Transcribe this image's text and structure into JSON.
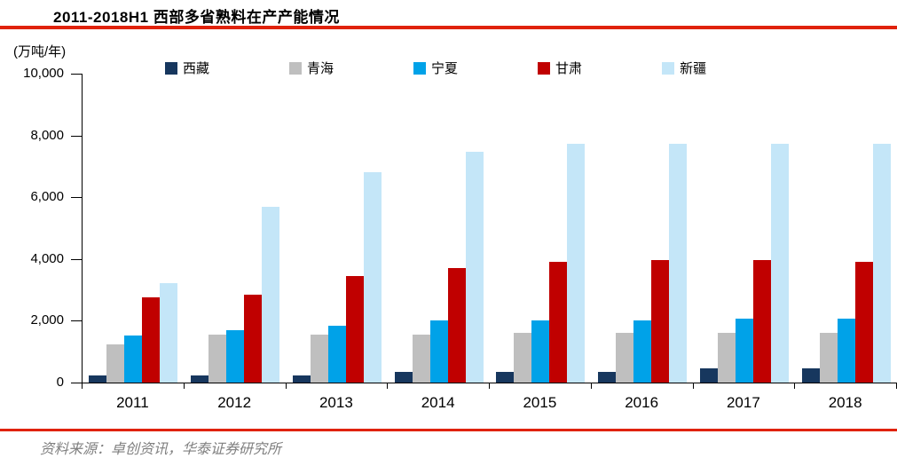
{
  "chart_data": {
    "type": "bar",
    "title": "2011-2018H1 西部多省熟料在产产能情况",
    "unit_label": "(万吨/年)",
    "categories": [
      "2011",
      "2012",
      "2013",
      "2014",
      "2015",
      "2016",
      "2017",
      "2018"
    ],
    "series": [
      {
        "key": "xizang",
        "name": "西藏",
        "color": "#17375E",
        "values": [
          220,
          220,
          220,
          340,
          340,
          340,
          460,
          460
        ]
      },
      {
        "key": "qinghai",
        "name": "青海",
        "color": "#BFBFBF",
        "values": [
          1250,
          1540,
          1540,
          1540,
          1600,
          1600,
          1600,
          1600
        ]
      },
      {
        "key": "ningxia",
        "name": "宁夏",
        "color": "#00A2E8",
        "values": [
          1530,
          1690,
          1830,
          2000,
          2000,
          2000,
          2080,
          2080
        ]
      },
      {
        "key": "gansu",
        "name": "甘肃",
        "color": "#C00000",
        "values": [
          2760,
          2840,
          3440,
          3700,
          3920,
          3980,
          3980,
          3900
        ]
      },
      {
        "key": "xinjiang",
        "name": "新疆",
        "color": "#C4E6F8",
        "values": [
          3220,
          5700,
          6800,
          7470,
          7740,
          7740,
          7740,
          7740
        ]
      }
    ],
    "ylim": [
      0,
      10000
    ],
    "ytick_labels": [
      "10,000",
      "8,000",
      "6,000",
      "4,000",
      "2,000",
      "0"
    ],
    "grid": false,
    "legend_position": "top"
  },
  "source_note": "资料来源：卓创资讯，华泰证券研究所",
  "colors": {
    "accent_red": "#E0220A",
    "axis_black": "#000000",
    "source_gray": "#7F7F7F"
  }
}
